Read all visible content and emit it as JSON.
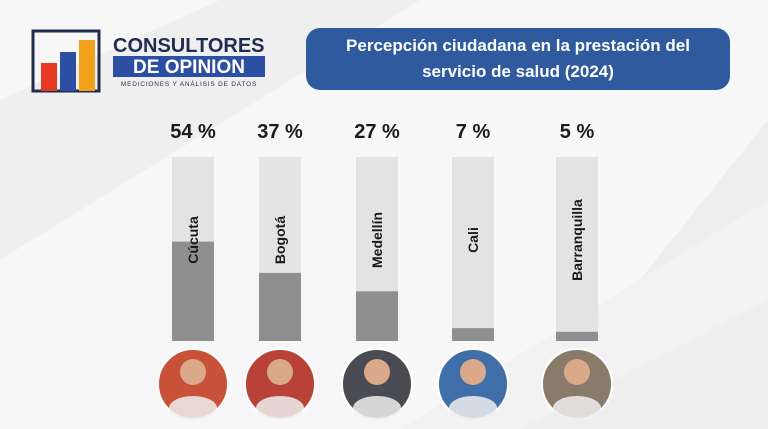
{
  "logo": {
    "name_top": "CONSULTORES",
    "name_bottom": "DE OPINION",
    "tagline": "MEDICIONES Y ANÁLISIS DE DATOS"
  },
  "chart_data": {
    "type": "bar",
    "title": "Percepción ciudadana en la prestación del servicio de salud (2024)",
    "categories": [
      "Cúcuta",
      "Bogotá",
      "Medellín",
      "Cali",
      "Barranquilla"
    ],
    "values": [
      54,
      37,
      27,
      7,
      5
    ],
    "value_labels": [
      "54 %",
      "37 %",
      "27 %",
      "7 %",
      "5 %"
    ],
    "color": "#8f8f8f",
    "ylim": [
      0,
      100
    ]
  }
}
